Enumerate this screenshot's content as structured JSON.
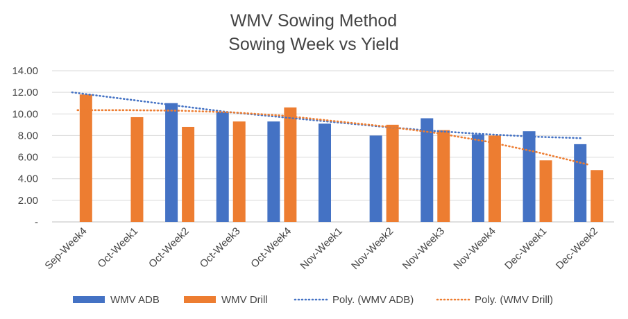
{
  "chart_data": {
    "type": "bar",
    "title": "WMV Sowing Method",
    "subtitle": "Sowing Week vs Yield",
    "xlabel": "",
    "ylabel": "",
    "ylim": [
      0,
      14
    ],
    "yticks": [
      0,
      2,
      4,
      6,
      8,
      10,
      12,
      14
    ],
    "ytick_labels": [
      "-",
      "2.00",
      "4.00",
      "6.00",
      "8.00",
      "10.00",
      "12.00",
      "14.00"
    ],
    "grid": true,
    "legend_position": "bottom",
    "categories": [
      "Sep-Week4",
      "Oct-Week1",
      "Oct-Week2",
      "Oct-Week3",
      "Oct-Week4",
      "Nov-Week1",
      "Nov-Week2",
      "Nov-Week3",
      "Nov-Week4",
      "Dec-Week1",
      "Dec-Week2"
    ],
    "series": [
      {
        "name": "WMV ADB",
        "color": "#4472C4",
        "values": [
          null,
          null,
          11.0,
          10.2,
          9.3,
          9.1,
          8.0,
          9.6,
          8.1,
          8.4,
          7.2
        ]
      },
      {
        "name": "WMV Drill",
        "color": "#ED7D31",
        "values": [
          11.8,
          9.7,
          8.8,
          9.3,
          10.6,
          null,
          9.0,
          8.5,
          8.0,
          5.7,
          4.8
        ]
      }
    ],
    "trendlines": [
      {
        "name": "Poly. (WMV ADB)",
        "color": "#4472C4",
        "values": [
          12.0,
          11.4,
          10.8,
          10.2,
          9.75,
          9.3,
          8.85,
          8.45,
          8.15,
          7.9,
          7.75
        ]
      },
      {
        "name": "Poly. (WMV Drill)",
        "color": "#ED7D31",
        "values": [
          10.35,
          10.35,
          10.3,
          10.15,
          9.85,
          9.35,
          8.85,
          8.25,
          7.45,
          6.45,
          5.3
        ]
      }
    ]
  }
}
